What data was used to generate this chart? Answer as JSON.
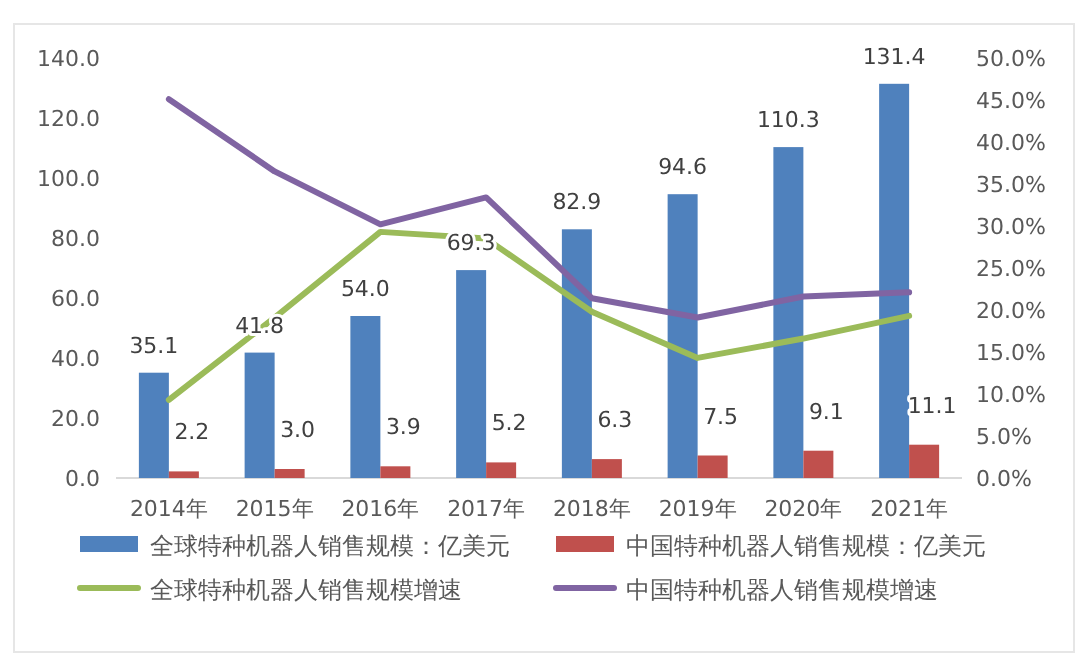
{
  "chart_data": {
    "type": "bar",
    "categories": [
      "2014年",
      "2015年",
      "2016年",
      "2017年",
      "2018年",
      "2019年",
      "2020年",
      "2021年"
    ],
    "series": [
      {
        "name": "全球特种机器人销售规模：亿美元",
        "color": "#4f81bd",
        "values": [
          35.1,
          41.8,
          54.0,
          69.3,
          82.9,
          94.6,
          110.3,
          131.4
        ],
        "value_labels": [
          "35.1",
          "41.8",
          "54.0",
          "69.3",
          "82.9",
          "94.6",
          "110.3",
          "131.4"
        ]
      },
      {
        "name": "中国特种机器人销售规模：亿美元",
        "color": "#c0504d",
        "values": [
          2.2,
          3.0,
          3.9,
          5.2,
          6.3,
          7.5,
          9.1,
          11.1
        ],
        "value_labels": [
          "2.2",
          "3.0",
          "3.9",
          "5.2",
          "6.3",
          "7.5",
          "9.1",
          "11.1"
        ]
      },
      {
        "name": "全球特种机器人销售规模增速",
        "type": "line",
        "axis": "y2",
        "color": "#9bbb59",
        "values": [
          9.3,
          19.1,
          29.3,
          28.5,
          19.8,
          14.3,
          16.6,
          19.3
        ]
      },
      {
        "name": "中国特种机器人销售规模增速",
        "type": "line",
        "axis": "y2",
        "color": "#8064a2",
        "values": [
          45.1,
          36.5,
          30.2,
          33.4,
          21.4,
          19.1,
          21.6,
          22.1
        ]
      }
    ],
    "ylim": [
      0,
      140
    ],
    "yticks": [
      {
        "value": 0,
        "label": "0.0"
      },
      {
        "value": 20,
        "label": "20.0"
      },
      {
        "value": 40,
        "label": "40.0"
      },
      {
        "value": 60,
        "label": "60.0"
      },
      {
        "value": 80,
        "label": "80.0"
      },
      {
        "value": 100,
        "label": "100.0"
      },
      {
        "value": 120,
        "label": "120.0"
      },
      {
        "value": 140,
        "label": "140.0"
      }
    ],
    "y2lim": [
      0,
      50
    ],
    "y2ticks": [
      {
        "value": 0,
        "label": "0.0%"
      },
      {
        "value": 5,
        "label": "5.0%"
      },
      {
        "value": 10,
        "label": "10.0%"
      },
      {
        "value": 15,
        "label": "15.0%"
      },
      {
        "value": 20,
        "label": "20.0%"
      },
      {
        "value": 25,
        "label": "25.0%"
      },
      {
        "value": 30,
        "label": "30.0%"
      },
      {
        "value": 35,
        "label": "35.0%"
      },
      {
        "value": 40,
        "label": "40.0%"
      },
      {
        "value": 45,
        "label": "45.0%"
      },
      {
        "value": 50,
        "label": "50.0%"
      }
    ],
    "legend": "bottom",
    "grid": false
  }
}
